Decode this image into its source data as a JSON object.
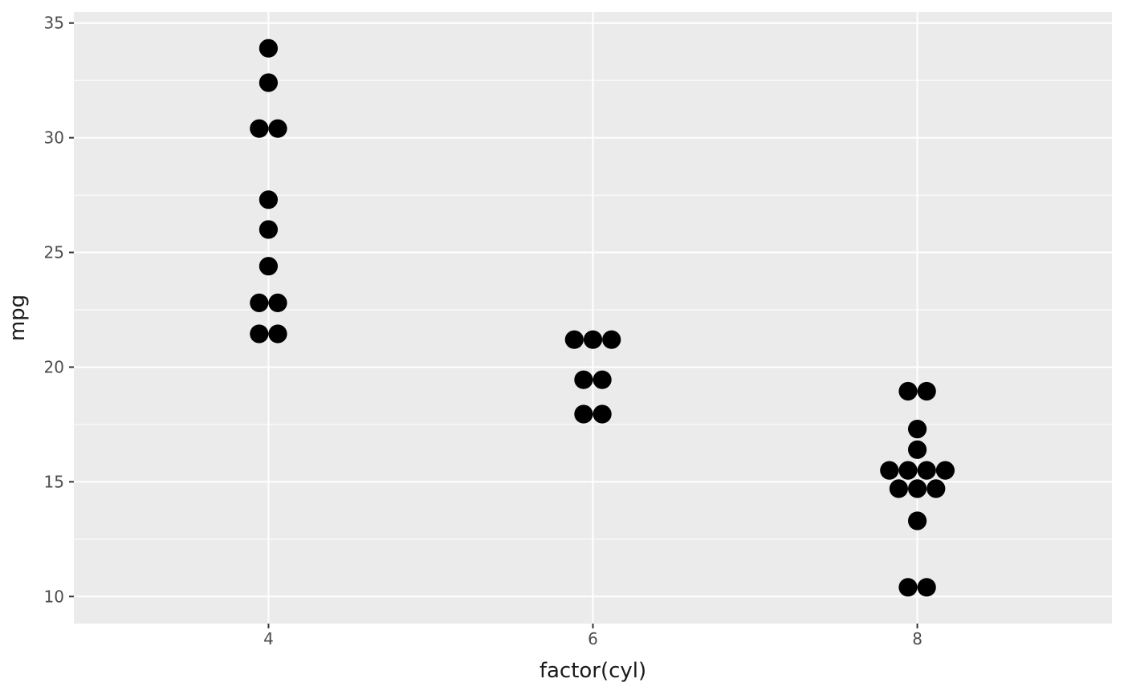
{
  "figure": {
    "background_color": "#FFFFFF",
    "panel_background_color": "#EBEBEB",
    "gridline_color": "#FFFFFF",
    "dot_color": "#000000",
    "tick_mark_color": "#333333",
    "tick_label_color": "#4D4D4D",
    "axis_title_color": "#1A1A1A"
  },
  "chart_data": {
    "type": "dotplot",
    "title": "",
    "xlabel": "factor(cyl)",
    "ylabel": "mpg",
    "legend": "none",
    "grid": "on",
    "categories": [
      "4",
      "6",
      "8"
    ],
    "x_tick_labels": [
      "4",
      "6",
      "8"
    ],
    "y_ticks": [
      10,
      15,
      20,
      25,
      30,
      35
    ],
    "y_minor_ticks": [
      12.5,
      17.5,
      22.5,
      27.5,
      32.5
    ],
    "ylim": [
      8.82,
      35.48
    ],
    "series": [
      {
        "category": "4",
        "values": [
          22.8,
          24.4,
          22.8,
          32.4,
          30.4,
          33.9,
          21.5,
          27.3,
          26.0,
          30.4,
          21.4
        ],
        "stacks": [
          {
            "y": 33.9,
            "count": 1
          },
          {
            "y": 32.4,
            "count": 1
          },
          {
            "y": 30.4,
            "count": 2
          },
          {
            "y": 27.3,
            "count": 1
          },
          {
            "y": 26.0,
            "count": 1
          },
          {
            "y": 24.4,
            "count": 1
          },
          {
            "y": 22.8,
            "count": 2
          },
          {
            "y": 21.45,
            "count": 2
          }
        ]
      },
      {
        "category": "6",
        "values": [
          21.0,
          21.0,
          21.4,
          18.1,
          19.2,
          17.8,
          19.7
        ],
        "stacks": [
          {
            "y": 21.2,
            "count": 3
          },
          {
            "y": 19.45,
            "count": 2
          },
          {
            "y": 17.95,
            "count": 2
          }
        ]
      },
      {
        "category": "8",
        "values": [
          18.7,
          14.3,
          16.4,
          17.3,
          15.2,
          10.4,
          10.4,
          14.7,
          15.5,
          15.2,
          13.3,
          19.2,
          15.8,
          15.0
        ],
        "stacks": [
          {
            "y": 18.95,
            "count": 2
          },
          {
            "y": 17.3,
            "count": 1
          },
          {
            "y": 16.4,
            "count": 1
          },
          {
            "y": 15.5,
            "count": 4
          },
          {
            "y": 14.7,
            "count": 3
          },
          {
            "y": 13.3,
            "count": 1
          },
          {
            "y": 10.4,
            "count": 2
          }
        ]
      }
    ]
  }
}
